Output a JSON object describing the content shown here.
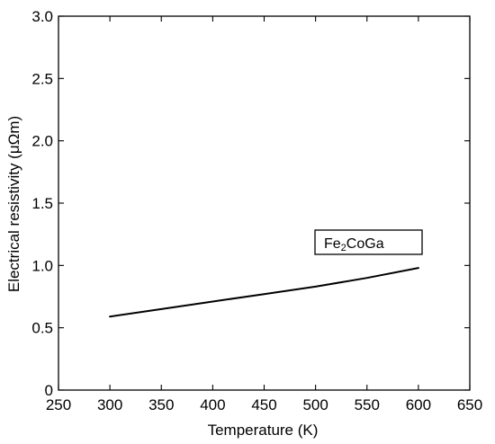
{
  "chart_data": {
    "type": "line",
    "title": "",
    "xlabel": "Temperature (K)",
    "ylabel": "Electrical resistivity (μΩm)",
    "xlim": [
      250,
      650
    ],
    "ylim": [
      0,
      3.0
    ],
    "x_ticks": [
      250,
      300,
      350,
      400,
      450,
      500,
      550,
      600,
      650
    ],
    "x_tick_labels": [
      "250",
      "300",
      "350",
      "400",
      "450",
      "500",
      "550",
      "600",
      "650"
    ],
    "y_ticks": [
      0,
      0.5,
      1.0,
      1.5,
      2.0,
      2.5,
      3.0
    ],
    "y_tick_labels": [
      "0",
      "0.5",
      "1.0",
      "1.5",
      "2.0",
      "2.5",
      "3.0"
    ],
    "grid": false,
    "series": [
      {
        "name": "Fe2CoGa",
        "label_main": "Fe",
        "label_sub": "2",
        "label_rest": "CoGa",
        "x": [
          300,
          350,
          400,
          450,
          500,
          550,
          600
        ],
        "y": [
          0.59,
          0.65,
          0.71,
          0.77,
          0.83,
          0.9,
          0.98
        ]
      }
    ]
  }
}
